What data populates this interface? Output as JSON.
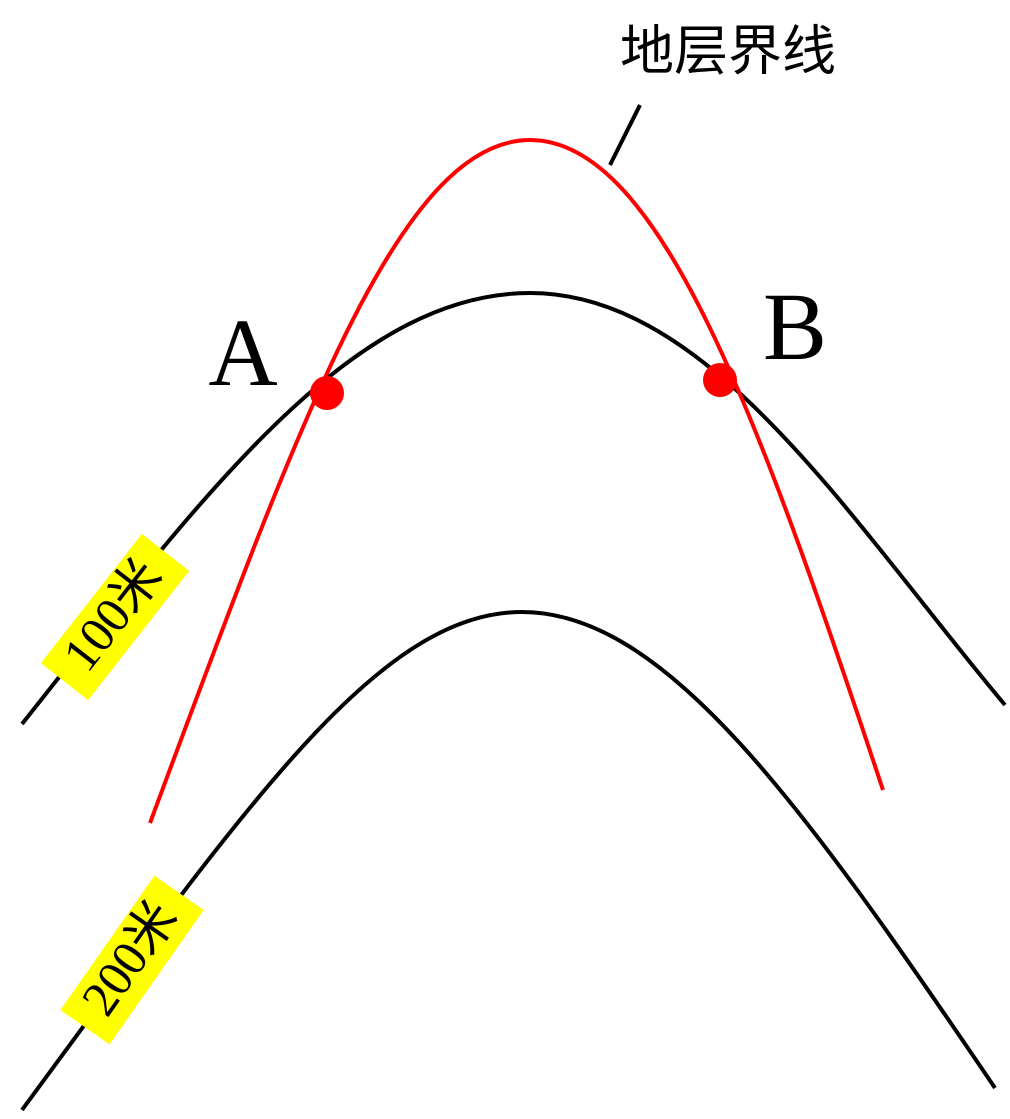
{
  "boundary_label": "地层界线",
  "points": [
    "A",
    "B"
  ],
  "contours": [
    "100米",
    "200米"
  ]
}
